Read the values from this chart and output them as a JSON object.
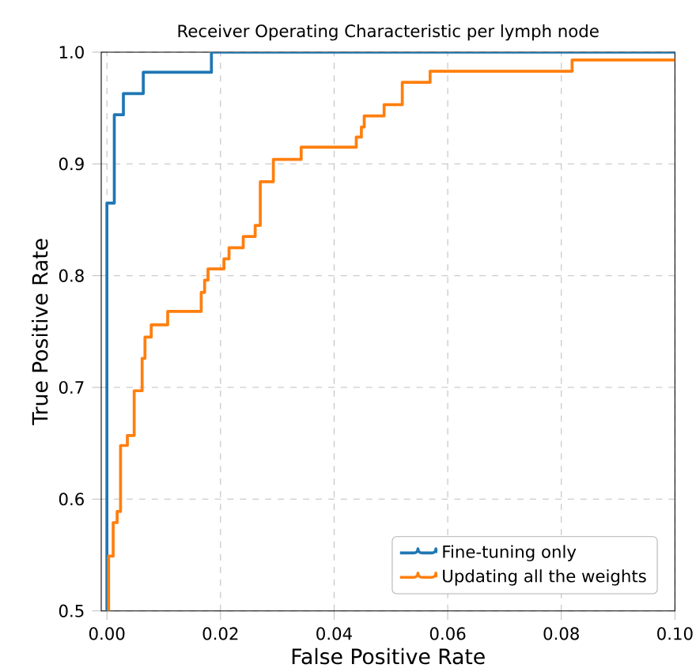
{
  "chart_data": {
    "type": "step",
    "title": "Receiver Operating Characteristic per lymph node",
    "xlabel": "False Positive Rate",
    "ylabel": "True Positive Rate",
    "series": [
      {
        "name": "Fine-tuning only",
        "color": "#1f77b4",
        "x": [
          0,
          0,
          0.0013,
          0.0029,
          0.0064,
          0.0184,
          0.1
        ],
        "values": [
          0.5,
          0.865,
          0.944,
          0.963,
          0.982,
          1.0,
          1.0
        ]
      },
      {
        "name": "Updating all the weights",
        "color": "#ff7f0e",
        "x": [
          0.0003,
          0.0003,
          0.0011,
          0.0018,
          0.0024,
          0.0036,
          0.0048,
          0.0062,
          0.0067,
          0.0078,
          0.0107,
          0.0166,
          0.0172,
          0.0178,
          0.0206,
          0.0215,
          0.024,
          0.0261,
          0.027,
          0.0293,
          0.0342,
          0.0439,
          0.0448,
          0.0453,
          0.0488,
          0.052,
          0.0569,
          0.0819,
          0.1
        ],
        "values": [
          0.5,
          0.549,
          0.579,
          0.589,
          0.648,
          0.657,
          0.697,
          0.726,
          0.745,
          0.756,
          0.768,
          0.785,
          0.796,
          0.806,
          0.815,
          0.825,
          0.835,
          0.845,
          0.884,
          0.904,
          0.915,
          0.924,
          0.933,
          0.943,
          0.953,
          0.973,
          0.983,
          0.993,
          0.993
        ]
      }
    ],
    "xlim": [
      -0.001,
      0.1
    ],
    "ylim": [
      0.5,
      1.0
    ],
    "xticks": [
      {
        "value": 0,
        "label": "0.00"
      },
      {
        "value": 0.02,
        "label": "0.02"
      },
      {
        "value": 0.04,
        "label": "0.04"
      },
      {
        "value": 0.06,
        "label": "0.06"
      },
      {
        "value": 0.08,
        "label": "0.08"
      },
      {
        "value": 0.1,
        "label": "0.10"
      }
    ],
    "yticks": [
      {
        "value": 0.5,
        "label": "0.5"
      },
      {
        "value": 0.6,
        "label": "0.6"
      },
      {
        "value": 0.7,
        "label": "0.7"
      },
      {
        "value": 0.8,
        "label": "0.8"
      },
      {
        "value": 0.9,
        "label": "0.9"
      },
      {
        "value": 1.0,
        "label": "1.0"
      }
    ],
    "grid": true,
    "legend": "bottom right",
    "line_style": "solid"
  }
}
